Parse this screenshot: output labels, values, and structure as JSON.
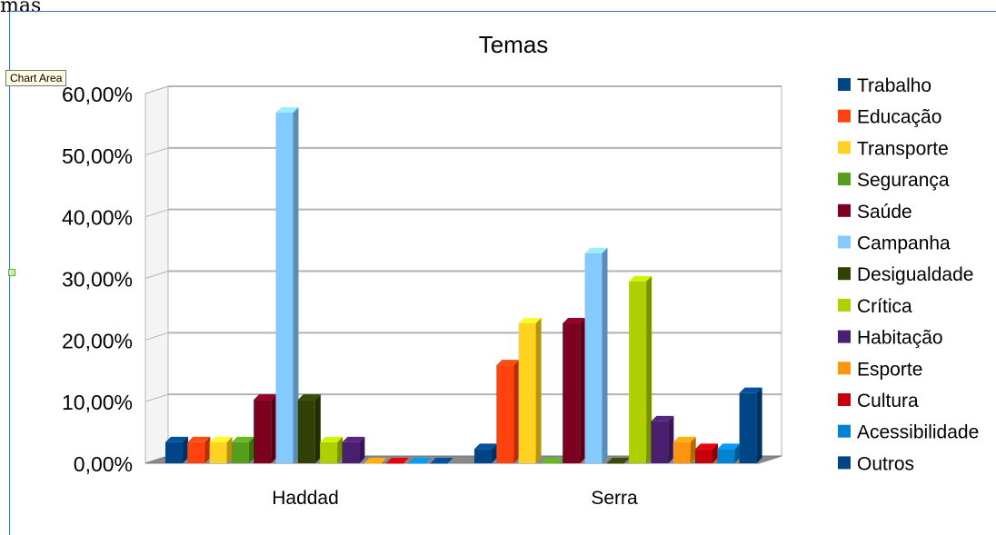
{
  "sheet": {
    "overflow_text": "mas",
    "tooltip": "Chart Area"
  },
  "chart_data": {
    "type": "bar",
    "title": "Temas",
    "categories": [
      "Haddad",
      "Serra"
    ],
    "ylim": [
      0,
      60
    ],
    "y_ticks": [
      "0,00%",
      "10,00%",
      "20,00%",
      "30,00%",
      "40,00%",
      "50,00%",
      "60,00%"
    ],
    "grid": true,
    "legend_position": "right",
    "series": [
      {
        "name": "Trabalho",
        "color": "#004586",
        "values": [
          3.4,
          2.3
        ]
      },
      {
        "name": "Educação",
        "color": "#ff420e",
        "values": [
          3.4,
          15.9
        ]
      },
      {
        "name": "Transporte",
        "color": "#ffd320",
        "values": [
          3.4,
          22.7
        ]
      },
      {
        "name": "Segurança",
        "color": "#579d1c",
        "values": [
          3.4,
          0
        ]
      },
      {
        "name": "Saúde",
        "color": "#7e0021",
        "values": [
          10.3,
          22.7
        ]
      },
      {
        "name": "Campanha",
        "color": "#83caff",
        "values": [
          56.9,
          34.1
        ]
      },
      {
        "name": "Desigualdade",
        "color": "#314004",
        "values": [
          10.3,
          0
        ]
      },
      {
        "name": "Crítica",
        "color": "#aecf00",
        "values": [
          3.4,
          29.5
        ]
      },
      {
        "name": "Habitação",
        "color": "#4b1f6f",
        "values": [
          3.4,
          6.8
        ]
      },
      {
        "name": "Esporte",
        "color": "#ff950e",
        "values": [
          0,
          3.4
        ]
      },
      {
        "name": "Cultura",
        "color": "#c5000b",
        "values": [
          0,
          2.3
        ]
      },
      {
        "name": "Acessibilidade",
        "color": "#0084d1",
        "values": [
          0,
          2.3
        ]
      },
      {
        "name": "Outros",
        "color": "#004586",
        "values": [
          0,
          11.4
        ]
      }
    ]
  }
}
